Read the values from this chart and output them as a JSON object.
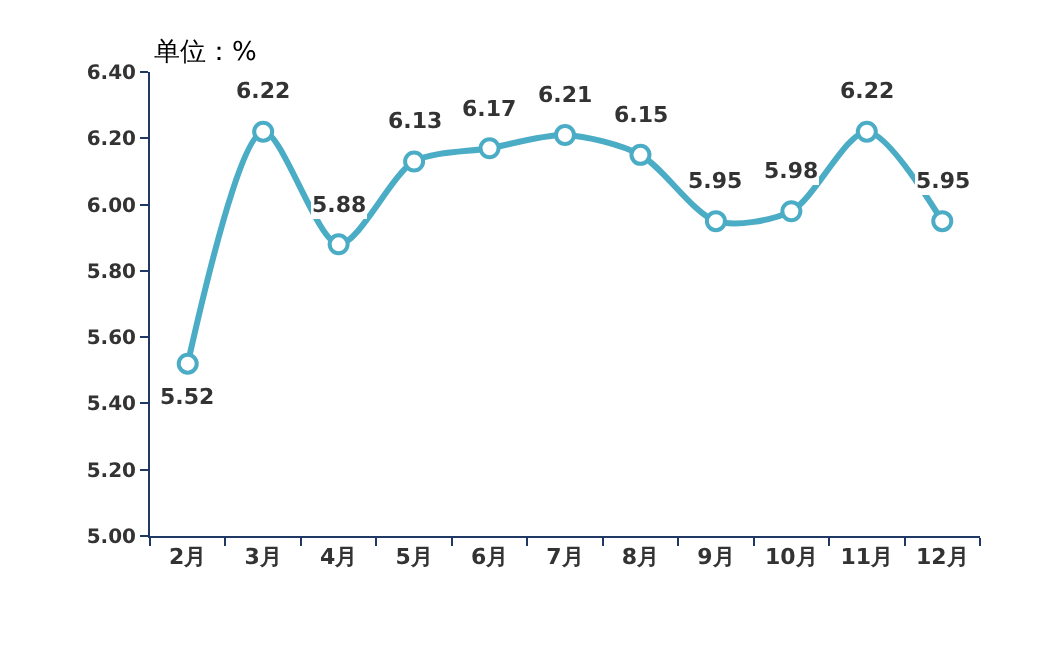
{
  "chart_data": {
    "type": "line",
    "annotations": [
      "单位：%"
    ],
    "categories": [
      "2月",
      "3月",
      "4月",
      "5月",
      "6月",
      "7月",
      "8月",
      "9月",
      "10月",
      "11月",
      "12月"
    ],
    "series": [
      {
        "color": "#4bacc6",
        "values": [
          5.52,
          6.22,
          5.88,
          6.13,
          6.17,
          6.21,
          6.15,
          5.95,
          5.98,
          6.22,
          5.95
        ]
      }
    ],
    "ylim": [
      5.0,
      6.4
    ],
    "yticks": [
      {
        "value": 5.0,
        "label": "5.00"
      },
      {
        "value": 5.2,
        "label": "5.20"
      },
      {
        "value": 5.4,
        "label": "5.40"
      },
      {
        "value": 5.6,
        "label": "5.60"
      },
      {
        "value": 5.8,
        "label": "5.80"
      },
      {
        "value": 6.0,
        "label": "6.00"
      },
      {
        "value": 6.2,
        "label": "6.20"
      },
      {
        "value": 6.4,
        "label": "6.40"
      }
    ],
    "data_labels": true,
    "legend": false,
    "marker": "circle",
    "line_style": "solid"
  }
}
